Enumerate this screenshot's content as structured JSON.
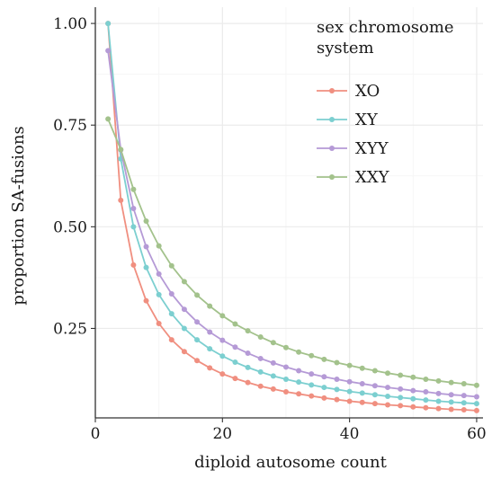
{
  "chart_data": {
    "type": "line",
    "xlabel": "diploid autosome count",
    "ylabel": "proportion SA-fusions",
    "xlim": [
      0,
      61
    ],
    "ylim": [
      0.03,
      1.04
    ],
    "x_ticks": [
      0,
      20,
      40,
      60
    ],
    "x_tick_labels": [
      "0",
      "20",
      "40",
      "60"
    ],
    "y_ticks": [
      0.25,
      0.5,
      0.75,
      1.0
    ],
    "y_tick_labels": [
      "0.25",
      "0.50",
      "0.75",
      "1.00"
    ],
    "grid": true,
    "legend": {
      "title_lines": [
        "sex chromosome",
        "system"
      ],
      "position": "top-right"
    },
    "x": [
      2,
      4,
      6,
      8,
      10,
      12,
      14,
      16,
      18,
      20,
      22,
      24,
      26,
      28,
      30,
      32,
      34,
      36,
      38,
      40,
      42,
      44,
      46,
      48,
      50,
      52,
      54,
      56,
      58,
      60
    ],
    "series": [
      {
        "name": "XO",
        "color": "#f08f80",
        "values": [
          1.0,
          0.565,
          0.406,
          0.318,
          0.262,
          0.222,
          0.193,
          0.171,
          0.153,
          0.138,
          0.127,
          0.117,
          0.108,
          0.101,
          0.094,
          0.089,
          0.084,
          0.079,
          0.075,
          0.071,
          0.068,
          0.065,
          0.062,
          0.06,
          0.057,
          0.055,
          0.053,
          0.051,
          0.05,
          0.048
        ]
      },
      {
        "name": "XY",
        "color": "#7ccfd0",
        "values": [
          1.0,
          0.667,
          0.5,
          0.4,
          0.333,
          0.286,
          0.25,
          0.222,
          0.2,
          0.182,
          0.167,
          0.154,
          0.143,
          0.133,
          0.125,
          0.118,
          0.111,
          0.105,
          0.1,
          0.095,
          0.091,
          0.087,
          0.083,
          0.08,
          0.077,
          0.074,
          0.071,
          0.069,
          0.067,
          0.065
        ]
      },
      {
        "name": "XYY",
        "color": "#b59ad6",
        "values": [
          0.933,
          0.689,
          0.545,
          0.451,
          0.384,
          0.335,
          0.297,
          0.266,
          0.241,
          0.221,
          0.204,
          0.189,
          0.176,
          0.165,
          0.155,
          0.146,
          0.138,
          0.131,
          0.125,
          0.119,
          0.114,
          0.109,
          0.105,
          0.101,
          0.097,
          0.094,
          0.09,
          0.087,
          0.085,
          0.082
        ]
      },
      {
        "name": "XXY",
        "color": "#a3c28c",
        "values": [
          0.765,
          0.69,
          0.592,
          0.514,
          0.453,
          0.404,
          0.365,
          0.332,
          0.305,
          0.281,
          0.261,
          0.244,
          0.229,
          0.215,
          0.203,
          0.192,
          0.183,
          0.174,
          0.166,
          0.159,
          0.152,
          0.146,
          0.14,
          0.135,
          0.13,
          0.125,
          0.121,
          0.117,
          0.114,
          0.11
        ]
      }
    ]
  }
}
